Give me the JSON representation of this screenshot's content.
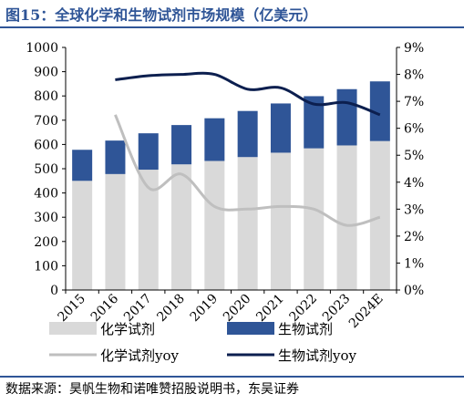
{
  "title": "图15：全球化学和生物试剂市场规模（亿美元）",
  "source": "数据来源：昊帆生物和诺唯赞招股说明书，东吴证券",
  "colors": {
    "title": "#2f5597",
    "chem_bar": "#d9d9d9",
    "bio_bar": "#2f5597",
    "chem_line": "#bfbfbf",
    "bio_line": "#0c1f4f",
    "axis": "#000000"
  },
  "chart_data": {
    "type": "bar",
    "stacked": true,
    "categories": [
      "2015",
      "2016",
      "2017",
      "2018",
      "2019",
      "2020",
      "2021",
      "2022",
      "2023",
      "2024E"
    ],
    "series": [
      {
        "name": "化学试剂",
        "kind": "bar",
        "axis": "left",
        "values": [
          450,
          478,
          496,
          518,
          532,
          548,
          566,
          584,
          596,
          614
        ]
      },
      {
        "name": "生物试剂",
        "kind": "bar",
        "axis": "left",
        "values": [
          128,
          138,
          150,
          162,
          176,
          190,
          203,
          215,
          232,
          246
        ]
      },
      {
        "name": "化学试剂yoy",
        "kind": "line",
        "axis": "right",
        "values": [
          null,
          6.5,
          3.8,
          4.3,
          3.1,
          3.0,
          3.1,
          3.0,
          2.4,
          2.7
        ]
      },
      {
        "name": "生物试剂yoy",
        "kind": "line",
        "axis": "right",
        "values": [
          null,
          7.8,
          7.95,
          8.0,
          8.0,
          7.45,
          7.5,
          6.9,
          6.95,
          6.5
        ]
      }
    ],
    "y_left": {
      "min": 0,
      "max": 1000,
      "ticks": [
        "0",
        "100",
        "200",
        "300",
        "400",
        "500",
        "600",
        "700",
        "800",
        "900",
        "1000"
      ]
    },
    "y_right": {
      "min": 0,
      "max": 9,
      "ticks": [
        "0%",
        "1%",
        "2%",
        "3%",
        "4%",
        "5%",
        "6%",
        "7%",
        "8%",
        "9%"
      ]
    },
    "grid": false,
    "legend_position": "bottom"
  }
}
